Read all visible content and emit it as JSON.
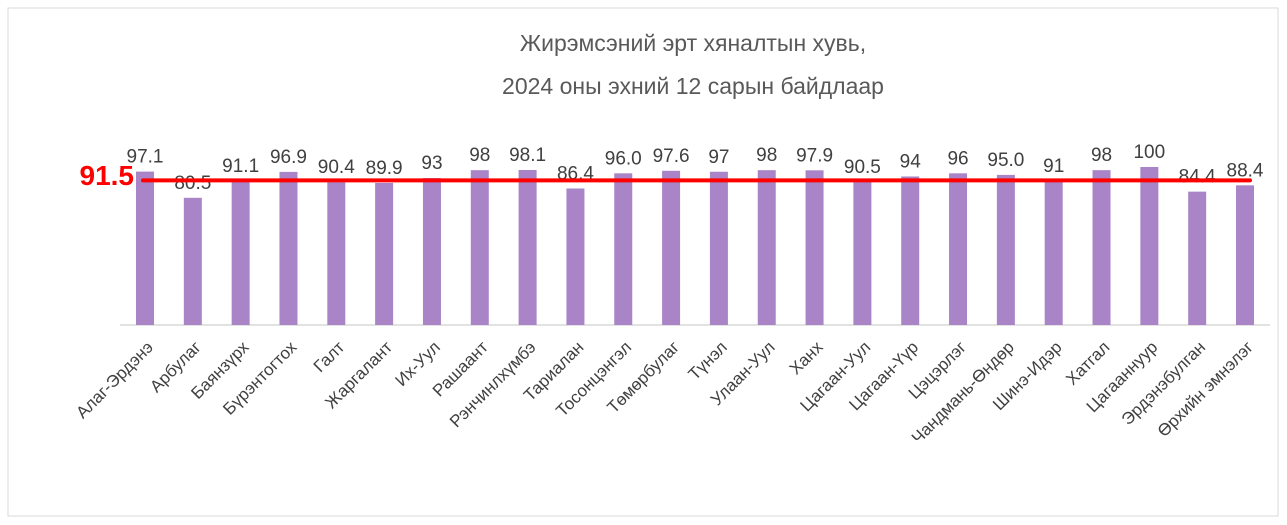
{
  "chart_data": {
    "type": "bar",
    "title": [
      "Жирэмсэний эрт хяналтын хувь,",
      "2024 оны эхний 12 сарын байдлаар"
    ],
    "categories": [
      "Алаг-Эрдэнэ",
      "Арбулаг",
      "Баянзүрх",
      "Бүрэнтогтох",
      "Галт",
      "Жаргалант",
      "Их-Уул",
      "Рашаант",
      "Рэнчинлхүмбэ",
      "Тариалан",
      "Тосонцэнгэл",
      "Төмөрбулаг",
      "Түнэл",
      "Улаан-Уул",
      "Ханх",
      "Цагаан-Уул",
      "Цагаан-Үүр",
      "Цэцэрлэг",
      "Чандмань-Өндөр",
      "Шинэ-Идэр",
      "Хатгал",
      "Цагааннуур",
      "Эрдэнэбулган",
      "Өрхийн эмнэлэг"
    ],
    "values": [
      97.1,
      80.5,
      91.1,
      96.9,
      90.4,
      89.9,
      93,
      98,
      98.1,
      86.4,
      96.0,
      97.6,
      97,
      98,
      97.9,
      90.5,
      94,
      96,
      95.0,
      91,
      98,
      100,
      84.4,
      88.4
    ],
    "value_labels": [
      "97.1",
      "80.5",
      "91.1",
      "96.9",
      "90.4",
      "89.9",
      "93",
      "98",
      "98.1",
      "86.4",
      "96.0",
      "97.6",
      "97",
      "98",
      "97.9",
      "90.5",
      "94",
      "96",
      "95.0",
      "91",
      "98",
      "100",
      "84.4",
      "88.4"
    ],
    "color": "#a985c8",
    "ylim": [
      0,
      100
    ],
    "reference_line": {
      "value": 91.5,
      "color": "#ff0000"
    }
  }
}
